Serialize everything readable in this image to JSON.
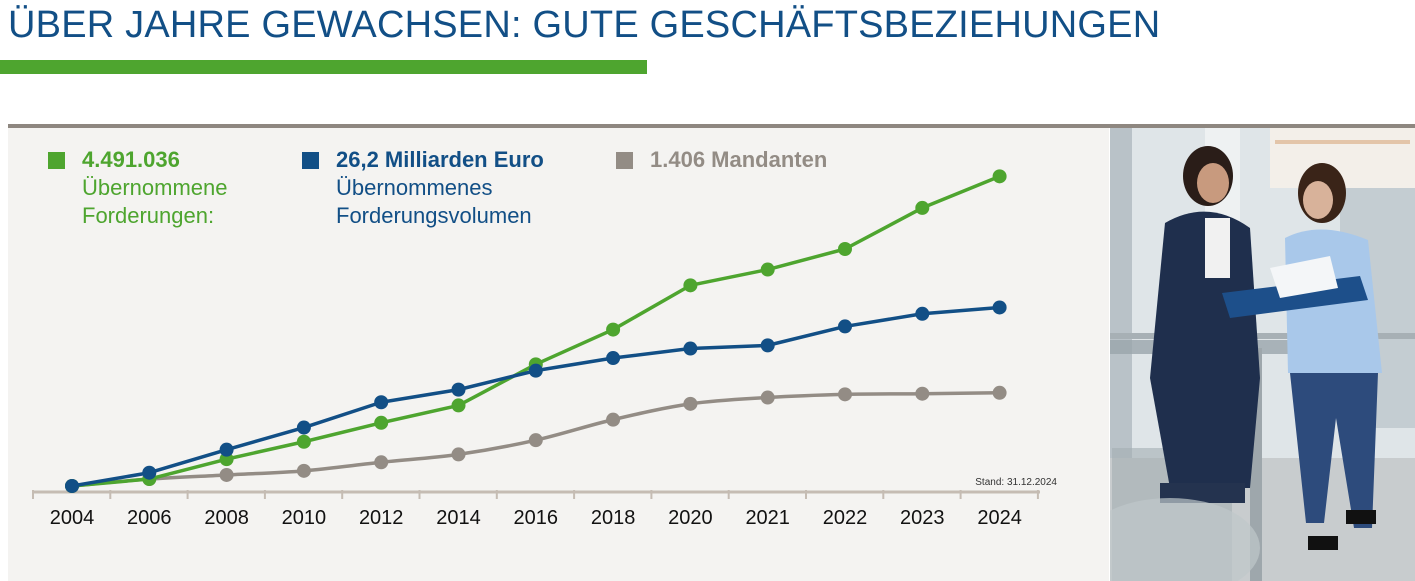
{
  "header": {
    "title": "ÜBER JAHRE GEWACHSEN: GUTE GESCHÄFTSBEZIEHUNGEN"
  },
  "legend": {
    "green": {
      "value": "4.491.036",
      "line1": "Übernommene",
      "line2": "Forderungen:"
    },
    "blue": {
      "value": "26,2 Milliarden Euro",
      "line1": "Übernommenes",
      "line2": "Forderungsvolumen"
    },
    "gray": {
      "value": "1.406 Mandanten"
    }
  },
  "colors": {
    "green": "#4ea52f",
    "blue": "#124f86",
    "gray": "#938c85",
    "axis": "#c5bcb3"
  },
  "chart_data": {
    "type": "line",
    "title": "ÜBER JAHRE GEWACHSEN: GUTE GESCHÄFTSBEZIEHUNGEN",
    "categories": [
      "2004",
      "2006",
      "2008",
      "2010",
      "2012",
      "2014",
      "2016",
      "2018",
      "2020",
      "2021",
      "2022",
      "2023",
      "2024"
    ],
    "ylim": [
      0,
      100
    ],
    "yaxis_visible": false,
    "note": "Stand: 31.12.2024",
    "series": [
      {
        "name": "Übernommene Forderungen",
        "color": "#4ea52f",
        "smooth": false,
        "values": [
          0,
          2.2,
          8.5,
          14,
          20,
          25.5,
          38.5,
          49.5,
          63.5,
          68.5,
          75,
          88,
          98
        ]
      },
      {
        "name": "Übernommenes Forderungsvolumen",
        "color": "#124f86",
        "smooth": false,
        "values": [
          0,
          4.2,
          11.5,
          18.5,
          26.5,
          30.5,
          36.5,
          40.5,
          43.5,
          44.5,
          50.5,
          54.5,
          56.5
        ]
      },
      {
        "name": "Mandanten",
        "color": "#938c85",
        "smooth": true,
        "values": [
          0,
          2.2,
          3.5,
          4.8,
          7.5,
          10,
          14.5,
          21,
          26,
          28,
          29,
          29.2,
          29.5
        ]
      }
    ]
  },
  "photo": {
    "description_icon": "two-women-photo"
  }
}
